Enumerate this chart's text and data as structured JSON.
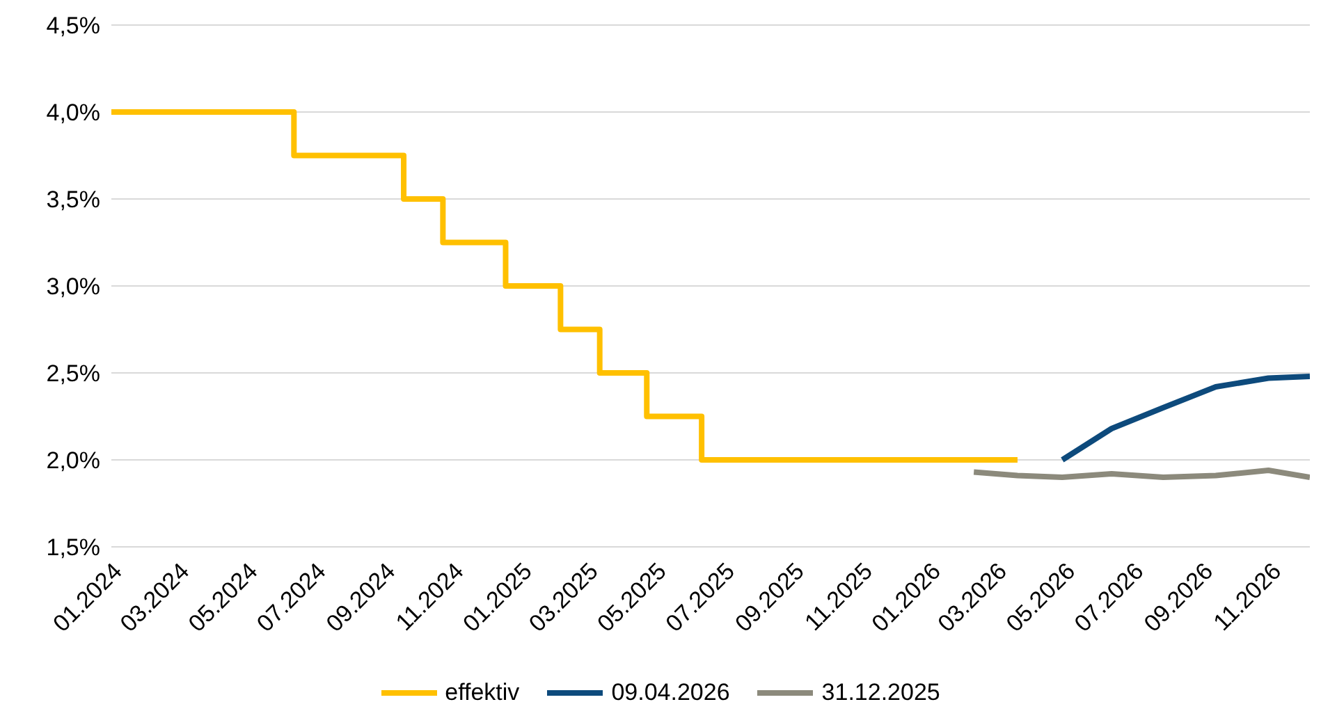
{
  "chart_data": {
    "type": "line",
    "xlim": [
      "2024-01-01",
      "2026-12-06"
    ],
    "xticks": [
      {
        "value": "2024-01-01",
        "label": "01.2024"
      },
      {
        "value": "2024-03-01",
        "label": "03.2024"
      },
      {
        "value": "2024-05-01",
        "label": "05.2024"
      },
      {
        "value": "2024-07-01",
        "label": "07.2024"
      },
      {
        "value": "2024-09-01",
        "label": "09.2024"
      },
      {
        "value": "2024-11-01",
        "label": "11.2024"
      },
      {
        "value": "2025-01-01",
        "label": "01.2025"
      },
      {
        "value": "2025-03-01",
        "label": "03.2025"
      },
      {
        "value": "2025-05-01",
        "label": "05.2025"
      },
      {
        "value": "2025-07-01",
        "label": "07.2025"
      },
      {
        "value": "2025-09-01",
        "label": "09.2025"
      },
      {
        "value": "2025-11-01",
        "label": "11.2025"
      },
      {
        "value": "2026-01-01",
        "label": "01.2026"
      },
      {
        "value": "2026-03-01",
        "label": "03.2026"
      },
      {
        "value": "2026-05-01",
        "label": "05.2026"
      },
      {
        "value": "2026-07-01",
        "label": "07.2026"
      },
      {
        "value": "2026-09-01",
        "label": "09.2026"
      },
      {
        "value": "2026-11-01",
        "label": "11.2026"
      }
    ],
    "ylim": [
      1.5,
      4.5
    ],
    "yticks": [
      {
        "value": 1.5,
        "label": "1,5%"
      },
      {
        "value": 2.0,
        "label": "2,0%"
      },
      {
        "value": 2.5,
        "label": "2,5%"
      },
      {
        "value": 3.0,
        "label": "3,0%"
      },
      {
        "value": 3.5,
        "label": "3,5%"
      },
      {
        "value": 4.0,
        "label": "4,0%"
      },
      {
        "value": 4.5,
        "label": "4,5%"
      }
    ],
    "grid": "y",
    "legend": "bottom",
    "marker": "none",
    "series": [
      {
        "name": "effektiv",
        "type": "step",
        "color": "#ffc000",
        "x": [
          "2024-01-01",
          "2024-06-12",
          "2024-09-18",
          "2024-10-23",
          "2024-12-18",
          "2025-02-05",
          "2025-03-12",
          "2025-04-23",
          "2025-06-11",
          "2026-03-20"
        ],
        "values": [
          4.0,
          3.75,
          3.5,
          3.25,
          3.0,
          2.75,
          2.5,
          2.25,
          2.0,
          2.0
        ]
      },
      {
        "name": "09.04.2026",
        "color": "#0d4a7c",
        "x": [
          "2026-04-29",
          "2026-06-12",
          "2026-07-28",
          "2026-09-13",
          "2026-10-30",
          "2026-12-06"
        ],
        "values": [
          2.0,
          2.18,
          2.3,
          2.42,
          2.47,
          2.48
        ]
      },
      {
        "name": "31.12.2025",
        "color": "#8c8a7c",
        "x": [
          "2026-02-09",
          "2026-03-20",
          "2026-04-29",
          "2026-06-12",
          "2026-07-28",
          "2026-09-13",
          "2026-10-30",
          "2026-12-06"
        ],
        "values": [
          1.93,
          1.91,
          1.9,
          1.92,
          1.9,
          1.91,
          1.94,
          1.9
        ]
      }
    ]
  }
}
